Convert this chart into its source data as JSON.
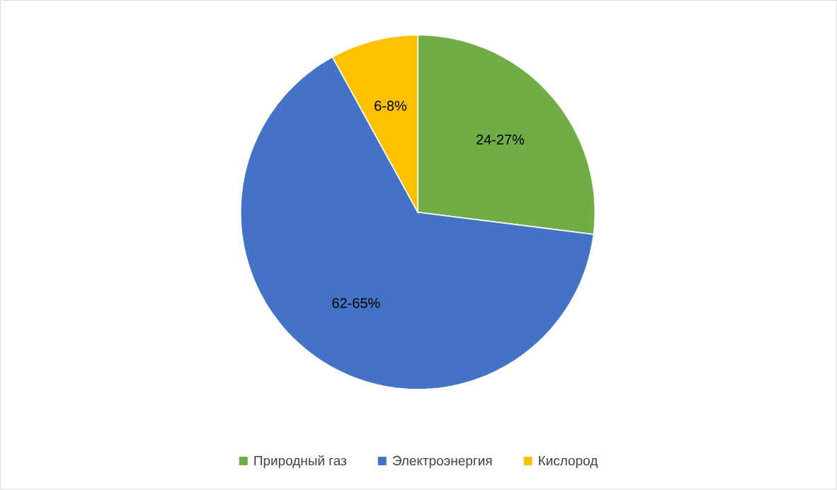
{
  "chart_data": {
    "type": "pie",
    "categories": [
      "Природный газ",
      "Электроэнергия",
      "Кислород"
    ],
    "values": [
      27,
      65,
      8
    ],
    "colors": [
      "#70ad47",
      "#4472c4",
      "#ffc000"
    ],
    "annotations": [
      "24-27%",
      "62-65%",
      "6-8%"
    ],
    "legend": "bottom"
  }
}
